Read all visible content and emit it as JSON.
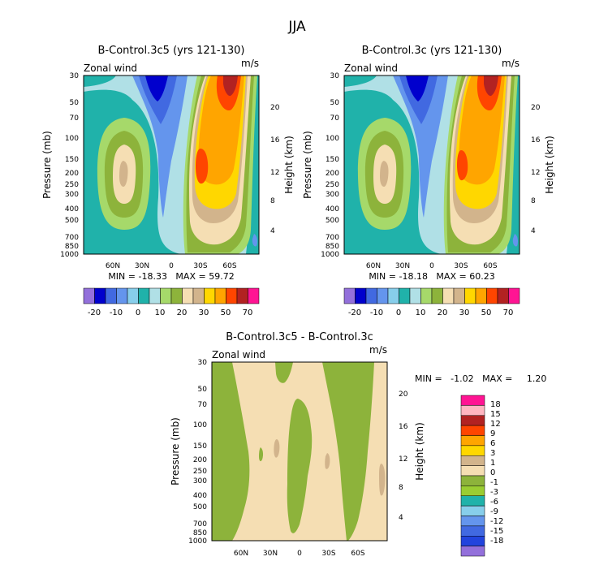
{
  "figure": {
    "title": "JJA"
  },
  "colors": {
    "abs": [
      "#9370db",
      "#0000cd",
      "#4169e1",
      "#6495ed",
      "#87ceeb",
      "#20b2aa",
      "#b0e0e6",
      "#a6d96a",
      "#8db33b",
      "#f5deb3",
      "#d2b48c",
      "#ffd700",
      "#ffa500",
      "#ff4500",
      "#b22222",
      "#ff1493"
    ],
    "diff": [
      "#9370db",
      "#2244dd",
      "#4169e1",
      "#6495ed",
      "#87ceeb",
      "#20b2aa",
      "#9acd32",
      "#8db33b",
      "#f5deb3",
      "#d2b48c",
      "#ffd700",
      "#ffa500",
      "#ff4500",
      "#b22222",
      "#ffb6c1",
      "#ff1493"
    ]
  },
  "chart_data": [
    {
      "type": "heatmap",
      "title": "B-Control.3c5 (yrs 121-130)",
      "left_label": "Zonal wind",
      "units": "m/s",
      "ylabel": "Pressure (mb)",
      "ylabel_right": "Height (km)",
      "pressure_ticks": [
        "30",
        "50",
        "70",
        "100",
        "150",
        "200",
        "250",
        "300",
        "400",
        "500",
        "700",
        "850",
        "1000"
      ],
      "height_ticks": [
        "20",
        "16",
        "12",
        "8",
        "4"
      ],
      "lat_ticks": [
        "60N",
        "30N",
        "0",
        "30S",
        "60S"
      ],
      "min_max_text": "MIN = -18.33   MAX = 59.72",
      "min": -18.33,
      "max": 59.72,
      "colorbar_labels": [
        "-20",
        "-10",
        "0",
        "10",
        "20",
        "30",
        "50",
        "70"
      ],
      "colorbar_levels": [
        -25,
        -20,
        -15,
        -10,
        -5,
        0,
        5,
        10,
        15,
        20,
        25,
        30,
        40,
        50,
        60,
        70
      ]
    },
    {
      "type": "heatmap",
      "title": "B-Control.3c (yrs 121-130)",
      "left_label": "Zonal wind",
      "units": "m/s",
      "ylabel": "Pressure (mb)",
      "ylabel_right": "Height (km)",
      "pressure_ticks": [
        "30",
        "50",
        "70",
        "100",
        "150",
        "200",
        "250",
        "300",
        "400",
        "500",
        "700",
        "850",
        "1000"
      ],
      "height_ticks": [
        "20",
        "16",
        "12",
        "8",
        "4"
      ],
      "lat_ticks": [
        "60N",
        "30N",
        "0",
        "30S",
        "60S"
      ],
      "min_max_text": "MIN = -18.18   MAX = 60.23",
      "min": -18.18,
      "max": 60.23,
      "colorbar_labels": [
        "-20",
        "-10",
        "0",
        "10",
        "20",
        "30",
        "50",
        "70"
      ],
      "colorbar_levels": [
        -25,
        -20,
        -15,
        -10,
        -5,
        0,
        5,
        10,
        15,
        20,
        25,
        30,
        40,
        50,
        60,
        70
      ]
    },
    {
      "type": "heatmap",
      "title": "B-Control.3c5 - B-Control.3c",
      "left_label": "Zonal wind",
      "units": "m/s",
      "ylabel": "Pressure (mb)",
      "ylabel_right": "Height (km)",
      "pressure_ticks": [
        "30",
        "50",
        "70",
        "100",
        "150",
        "200",
        "250",
        "300",
        "400",
        "500",
        "700",
        "850",
        "1000"
      ],
      "height_ticks": [
        "20",
        "16",
        "12",
        "8",
        "4"
      ],
      "lat_ticks": [
        "60N",
        "30N",
        "0",
        "30S",
        "60S"
      ],
      "min_max_text": "MIN =   -1.02   MAX =     1.20",
      "min": -1.02,
      "max": 1.2,
      "colorbar_labels": [
        "18",
        "15",
        "12",
        "9",
        "6",
        "3",
        "1",
        "0",
        "-1",
        "-3",
        "-6",
        "-9",
        "-12",
        "-15",
        "-18"
      ]
    }
  ]
}
